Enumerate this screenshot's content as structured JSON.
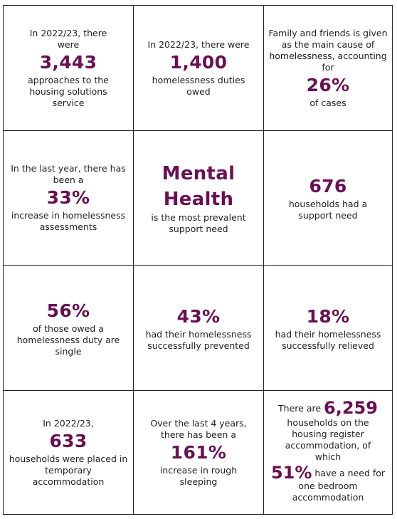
{
  "accent_color": "#6a1052",
  "cells": [
    {
      "pre": "In 2022/23, there were",
      "stat": "3,443",
      "post": "approaches to the housing solutions service"
    },
    {
      "pre": "In 2022/23, there were",
      "stat": "1,400",
      "post": "homelessness duties owed"
    },
    {
      "pre": "Family and friends is given as the main cause of homelessness, accounting for",
      "stat": "26%",
      "post": "of cases"
    },
    {
      "pre": "In the last year, there has been a",
      "stat": "33%",
      "post": "increase in homelessness assessments"
    },
    {
      "stat_line1": "Mental",
      "stat_line2": "Health",
      "post": "is the most prevalent support need"
    },
    {
      "stat": "676",
      "post": "households had a support need"
    },
    {
      "stat": "56%",
      "post": "of those owed a homelessness duty are single"
    },
    {
      "stat": "43%",
      "post": "had their homelessness successfully prevented"
    },
    {
      "stat": "18%",
      "post": "had their homelessness successfully relieved"
    },
    {
      "pre": "In 2022/23,",
      "stat": "633",
      "post": "households were placed in temporary accommodation"
    },
    {
      "pre": "Over the last 4 years, there has been a",
      "stat": "161%",
      "post": "increase in rough sleeping"
    },
    {
      "pre": "There are",
      "stat": "6,259",
      "mid": "households on the housing register accommodation, of which",
      "stat2": "51%",
      "post_inline": "have a need for",
      "post": "one bedroom accommodation"
    }
  ]
}
